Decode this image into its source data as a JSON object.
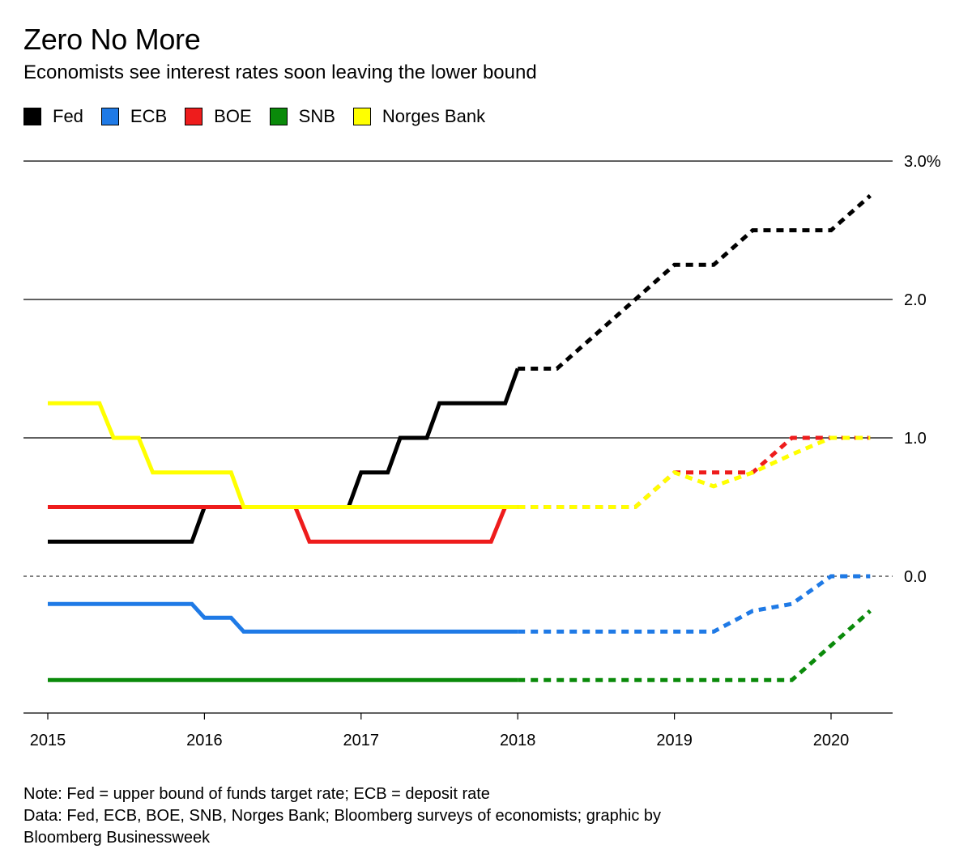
{
  "title": "Zero No More",
  "subtitle": "Economists see interest rates soon leaving the lower bound",
  "note": "Note: Fed = upper bound of funds target rate; ECB = deposit rate",
  "source_line1": "Data: Fed, ECB, BOE, SNB, Norges Bank; Bloomberg surveys of economists; graphic by",
  "source_line2": "Bloomberg Businessweek",
  "chart_data": {
    "type": "line",
    "title": "Zero No More",
    "subtitle": "Economists see interest rates soon leaving the lower bound",
    "xlabel": "",
    "ylabel": "",
    "xlim": [
      2015.0,
      2020.4
    ],
    "ylim": [
      -1.0,
      3.0
    ],
    "x_ticks": [
      2015,
      2016,
      2017,
      2018,
      2019,
      2020
    ],
    "x_tick_labels": [
      "2015",
      "2016",
      "2017",
      "2018",
      "2019",
      "2020"
    ],
    "y_ticks": [
      3.0,
      2.0,
      1.0,
      0.0
    ],
    "y_tick_labels": [
      "3.0%",
      "2.0",
      "1.0",
      "0.0"
    ],
    "y_axis_side": "right",
    "grid": "horizontal",
    "zero_line": "dashed",
    "legend_position": "top-left",
    "forecast_style": "dashed after 2018",
    "series": [
      {
        "name": "Fed",
        "color": "#000000",
        "actual": [
          [
            2015.0,
            0.25
          ],
          [
            2015.92,
            0.25
          ],
          [
            2016.0,
            0.5
          ],
          [
            2016.92,
            0.5
          ],
          [
            2017.0,
            0.75
          ],
          [
            2017.17,
            0.75
          ],
          [
            2017.25,
            1.0
          ],
          [
            2017.42,
            1.0
          ],
          [
            2017.5,
            1.25
          ],
          [
            2017.92,
            1.25
          ],
          [
            2018.0,
            1.5
          ]
        ],
        "forecast": [
          [
            2018.0,
            1.5
          ],
          [
            2018.25,
            1.5
          ],
          [
            2018.75,
            2.0
          ],
          [
            2019.0,
            2.25
          ],
          [
            2019.25,
            2.25
          ],
          [
            2019.5,
            2.5
          ],
          [
            2020.0,
            2.5
          ],
          [
            2020.25,
            2.75
          ]
        ]
      },
      {
        "name": "ECB",
        "color": "#1f7ae6",
        "actual": [
          [
            2015.0,
            -0.2
          ],
          [
            2015.92,
            -0.2
          ],
          [
            2016.0,
            -0.3
          ],
          [
            2016.17,
            -0.3
          ],
          [
            2016.25,
            -0.4
          ],
          [
            2018.0,
            -0.4
          ]
        ],
        "forecast": [
          [
            2018.0,
            -0.4
          ],
          [
            2019.25,
            -0.4
          ],
          [
            2019.5,
            -0.25
          ],
          [
            2019.75,
            -0.2
          ],
          [
            2020.0,
            0.0
          ],
          [
            2020.25,
            0.0
          ]
        ]
      },
      {
        "name": "BOE",
        "color": "#ee1c1c",
        "actual": [
          [
            2015.0,
            0.5
          ],
          [
            2016.58,
            0.5
          ],
          [
            2016.67,
            0.25
          ],
          [
            2017.83,
            0.25
          ],
          [
            2017.92,
            0.5
          ],
          [
            2018.0,
            0.5
          ]
        ],
        "forecast": [
          [
            2018.0,
            0.5
          ],
          [
            2018.75,
            0.5
          ],
          [
            2019.0,
            0.75
          ],
          [
            2019.5,
            0.75
          ],
          [
            2019.75,
            1.0
          ],
          [
            2020.25,
            1.0
          ]
        ]
      },
      {
        "name": "SNB",
        "color": "#0a8a0a",
        "actual": [
          [
            2015.0,
            -0.75
          ],
          [
            2018.0,
            -0.75
          ]
        ],
        "forecast": [
          [
            2018.0,
            -0.75
          ],
          [
            2019.75,
            -0.75
          ],
          [
            2020.25,
            -0.25
          ]
        ]
      },
      {
        "name": "Norges Bank",
        "color": "#ffff00",
        "actual": [
          [
            2015.0,
            1.25
          ],
          [
            2015.33,
            1.25
          ],
          [
            2015.42,
            1.0
          ],
          [
            2015.58,
            1.0
          ],
          [
            2015.67,
            0.75
          ],
          [
            2016.17,
            0.75
          ],
          [
            2016.25,
            0.5
          ],
          [
            2018.0,
            0.5
          ]
        ],
        "forecast": [
          [
            2018.0,
            0.5
          ],
          [
            2018.75,
            0.5
          ],
          [
            2019.0,
            0.75
          ],
          [
            2019.25,
            0.65
          ],
          [
            2019.5,
            0.75
          ],
          [
            2019.75,
            0.88
          ],
          [
            2020.0,
            1.0
          ],
          [
            2020.25,
            1.0
          ]
        ]
      }
    ]
  }
}
